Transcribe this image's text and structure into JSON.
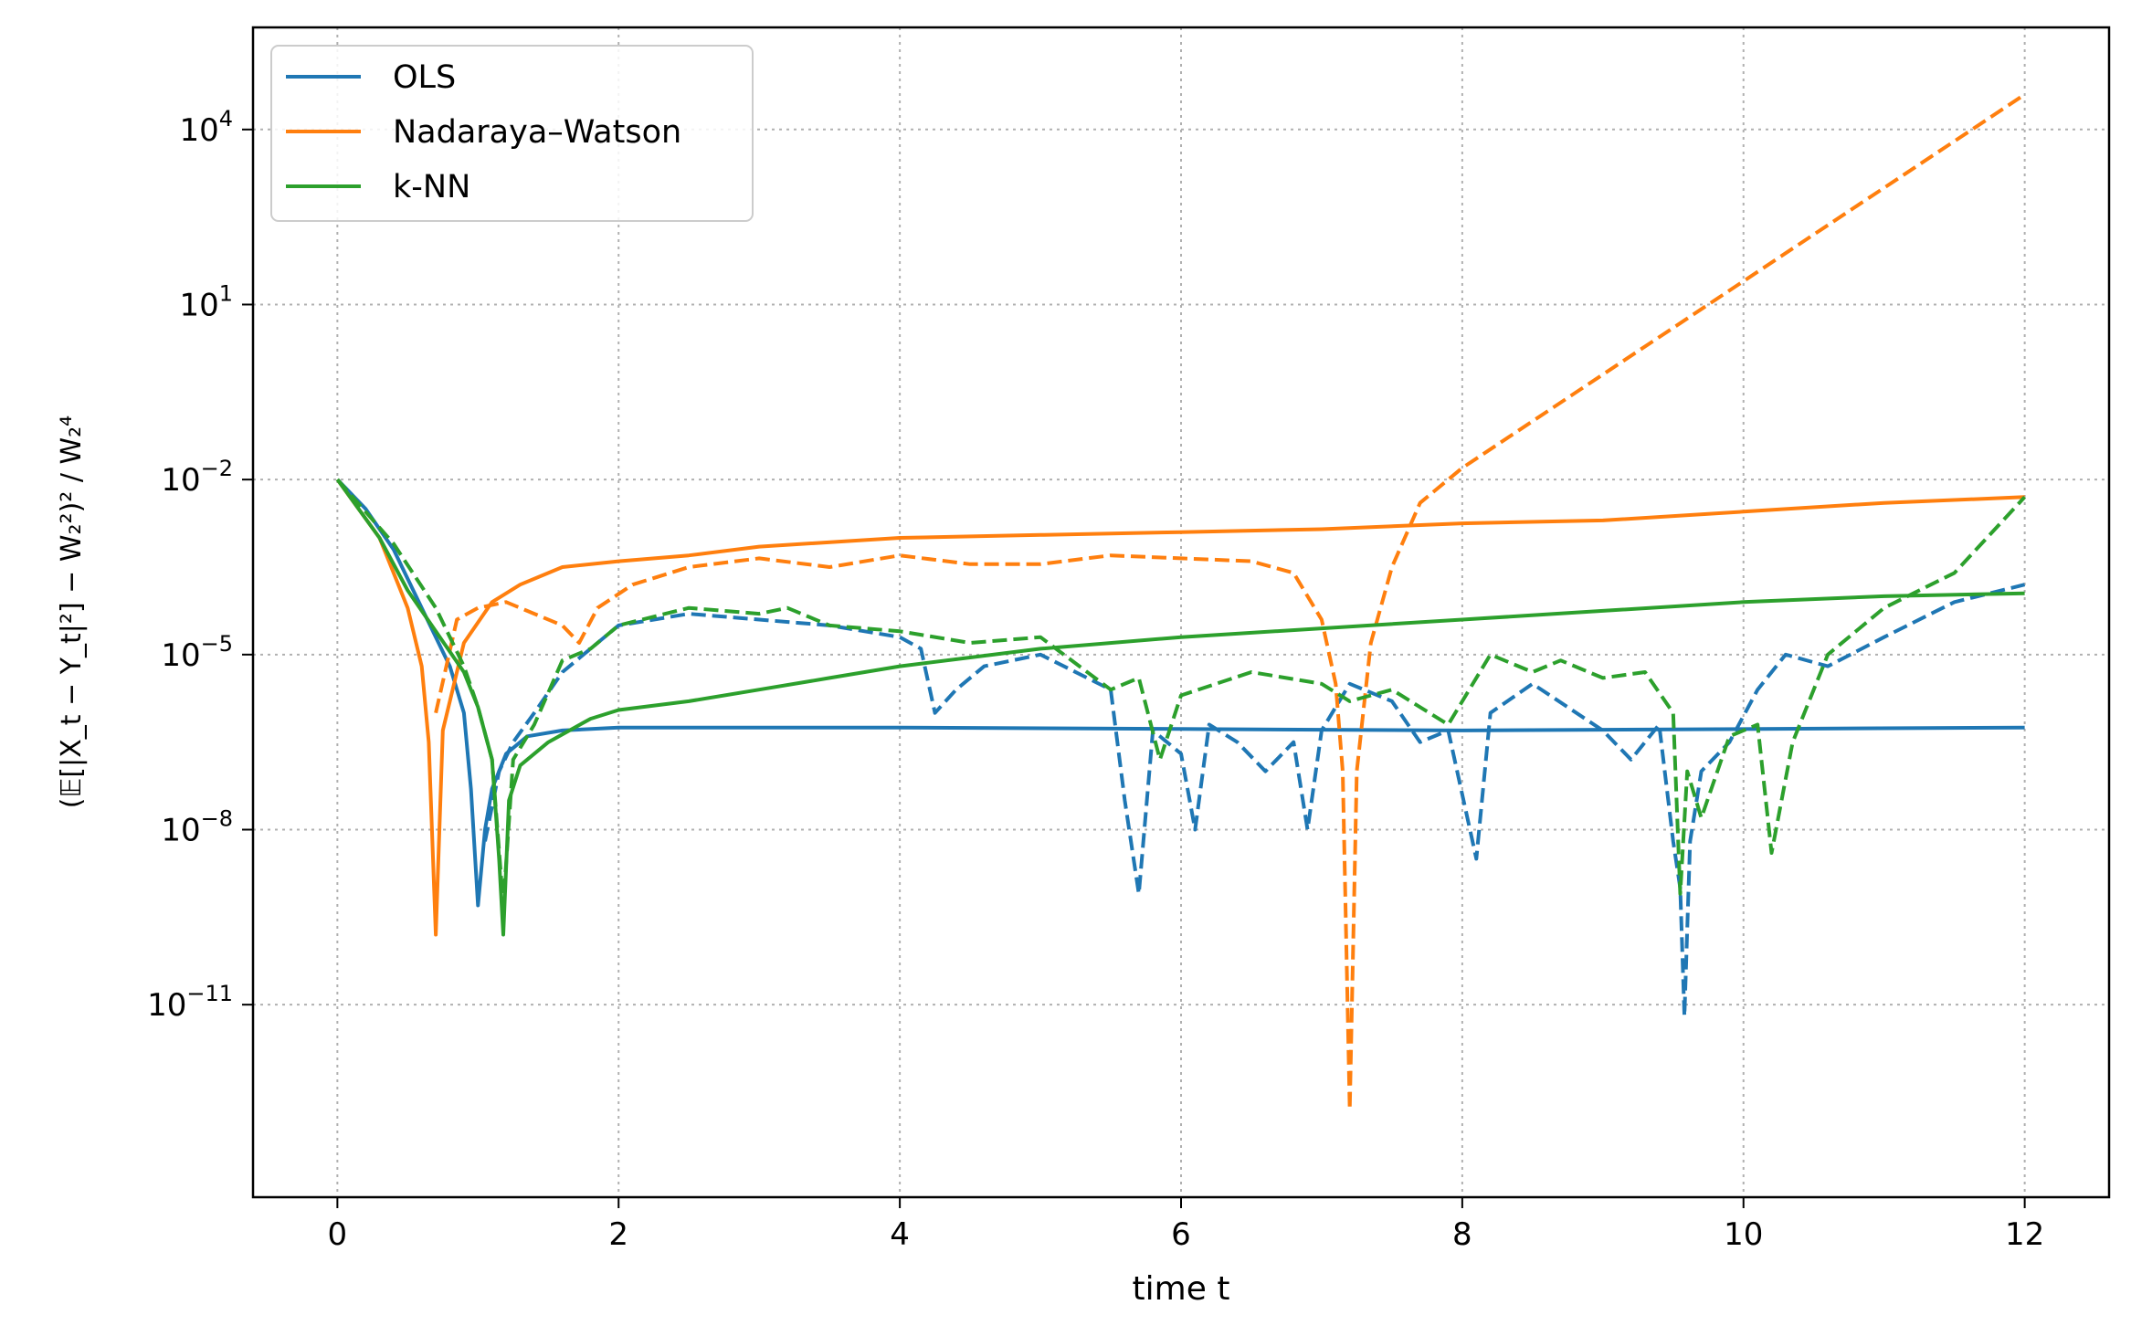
{
  "chart_data": {
    "type": "line",
    "title": "",
    "xlabel": "time t",
    "ylabel": "(𝔼[|X_t − Y_t|²] − W₂²)² / W₂⁴",
    "yscale": "log",
    "xlim": [
      -0.6,
      12.6
    ],
    "ylim_exp": [
      -14.3,
      5.75
    ],
    "xticks": [
      0,
      2,
      4,
      6,
      8,
      10,
      12
    ],
    "xtick_labels": [
      "0",
      "2",
      "4",
      "6",
      "8",
      "10",
      "12"
    ],
    "yticks_exp": [
      -11,
      -8,
      -5,
      -2,
      1,
      4
    ],
    "ytick_labels": [
      {
        "base": "10",
        "exp": "−11"
      },
      {
        "base": "10",
        "exp": "−8"
      },
      {
        "base": "10",
        "exp": "−5"
      },
      {
        "base": "10",
        "exp": "−2"
      },
      {
        "base": "10",
        "exp": "1"
      },
      {
        "base": "10",
        "exp": "4"
      }
    ],
    "grid": true,
    "legend_position": "top-left",
    "legend": [
      {
        "name": "OLS",
        "color": "#1f77b4"
      },
      {
        "name": "Nadaraya–Watson",
        "color": "#ff7f0e"
      },
      {
        "name": "k-NN",
        "color": "#2ca02c"
      }
    ],
    "series": [
      {
        "name": "OLS (solid)",
        "color": "#1f77b4",
        "style": "solid",
        "log10_values": [
          [
            0,
            -2
          ],
          [
            0.2,
            -2.5
          ],
          [
            0.4,
            -3.2
          ],
          [
            0.6,
            -4.2
          ],
          [
            0.8,
            -5.2
          ],
          [
            0.9,
            -6
          ],
          [
            0.95,
            -7.3
          ],
          [
            1.0,
            -9.3
          ],
          [
            1.05,
            -8
          ],
          [
            1.1,
            -7.3
          ],
          [
            1.2,
            -6.7
          ],
          [
            1.35,
            -6.4
          ],
          [
            1.6,
            -6.3
          ],
          [
            2,
            -6.25
          ],
          [
            4,
            -6.25
          ],
          [
            8,
            -6.3
          ],
          [
            12,
            -6.25
          ]
        ]
      },
      {
        "name": "OLS (dashed)",
        "color": "#1f77b4",
        "style": "dashed",
        "log10_values": [
          [
            1.05,
            -8.2
          ],
          [
            1.15,
            -7
          ],
          [
            1.25,
            -6.5
          ],
          [
            1.4,
            -6
          ],
          [
            1.6,
            -5.3
          ],
          [
            1.8,
            -4.9
          ],
          [
            2,
            -4.5
          ],
          [
            2.5,
            -4.3
          ],
          [
            3,
            -4.4
          ],
          [
            3.5,
            -4.5
          ],
          [
            4,
            -4.7
          ],
          [
            4.15,
            -4.9
          ],
          [
            4.25,
            -6
          ],
          [
            4.4,
            -5.6
          ],
          [
            4.6,
            -5.2
          ],
          [
            5,
            -5
          ],
          [
            5.5,
            -5.6
          ],
          [
            5.6,
            -7.5
          ],
          [
            5.7,
            -9.1
          ],
          [
            5.8,
            -6.3
          ],
          [
            6.0,
            -6.7
          ],
          [
            6.1,
            -8
          ],
          [
            6.2,
            -6.2
          ],
          [
            6.4,
            -6.5
          ],
          [
            6.6,
            -7
          ],
          [
            6.8,
            -6.5
          ],
          [
            6.9,
            -8
          ],
          [
            7.0,
            -6.3
          ],
          [
            7.2,
            -5.5
          ],
          [
            7.5,
            -5.8
          ],
          [
            7.7,
            -6.5
          ],
          [
            7.9,
            -6.3
          ],
          [
            8.1,
            -8.5
          ],
          [
            8.2,
            -6
          ],
          [
            8.5,
            -5.5
          ],
          [
            9,
            -6.3
          ],
          [
            9.2,
            -6.8
          ],
          [
            9.4,
            -6.2
          ],
          [
            9.5,
            -8.2
          ],
          [
            9.55,
            -9
          ],
          [
            9.58,
            -11.2
          ],
          [
            9.62,
            -8.2
          ],
          [
            9.7,
            -7
          ],
          [
            9.9,
            -6.5
          ],
          [
            10.1,
            -5.6
          ],
          [
            10.3,
            -5
          ],
          [
            10.6,
            -5.2
          ],
          [
            11,
            -4.7
          ],
          [
            11.5,
            -4.1
          ],
          [
            12,
            -3.8
          ]
        ]
      },
      {
        "name": "Nadaraya–Watson (solid)",
        "color": "#ff7f0e",
        "style": "solid",
        "log10_values": [
          [
            0,
            -2
          ],
          [
            0.3,
            -3
          ],
          [
            0.5,
            -4.2
          ],
          [
            0.6,
            -5.2
          ],
          [
            0.65,
            -6.5
          ],
          [
            0.7,
            -9.8
          ],
          [
            0.75,
            -6.3
          ],
          [
            0.9,
            -4.8
          ],
          [
            1.1,
            -4.1
          ],
          [
            1.3,
            -3.8
          ],
          [
            1.6,
            -3.5
          ],
          [
            2,
            -3.4
          ],
          [
            2.5,
            -3.3
          ],
          [
            3,
            -3.15
          ],
          [
            4,
            -3
          ],
          [
            5,
            -2.95
          ],
          [
            6,
            -2.9
          ],
          [
            7,
            -2.85
          ],
          [
            8,
            -2.75
          ],
          [
            9,
            -2.7
          ],
          [
            10,
            -2.55
          ],
          [
            11,
            -2.4
          ],
          [
            12,
            -2.3
          ]
        ]
      },
      {
        "name": "Nadaraya–Watson (dashed)",
        "color": "#ff7f0e",
        "style": "dashed",
        "log10_values": [
          [
            0.7,
            -6
          ],
          [
            0.85,
            -4.4
          ],
          [
            1.0,
            -4.2
          ],
          [
            1.2,
            -4.1
          ],
          [
            1.4,
            -4.3
          ],
          [
            1.6,
            -4.5
          ],
          [
            1.72,
            -4.8
          ],
          [
            1.85,
            -4.2
          ],
          [
            2.1,
            -3.8
          ],
          [
            2.5,
            -3.5
          ],
          [
            3,
            -3.35
          ],
          [
            3.5,
            -3.5
          ],
          [
            4,
            -3.3
          ],
          [
            4.5,
            -3.45
          ],
          [
            5,
            -3.45
          ],
          [
            5.5,
            -3.3
          ],
          [
            6,
            -3.35
          ],
          [
            6.5,
            -3.4
          ],
          [
            6.8,
            -3.6
          ],
          [
            7.0,
            -4.4
          ],
          [
            7.1,
            -5.5
          ],
          [
            7.15,
            -7
          ],
          [
            7.2,
            -12.8
          ],
          [
            7.25,
            -7
          ],
          [
            7.35,
            -4.8
          ],
          [
            7.5,
            -3.5
          ],
          [
            7.7,
            -2.4
          ],
          [
            8,
            -1.8
          ],
          [
            8.5,
            -1
          ],
          [
            9,
            -0.2
          ],
          [
            9.5,
            0.6
          ],
          [
            10,
            1.4
          ],
          [
            10.5,
            2.2
          ],
          [
            11,
            3.0
          ],
          [
            11.5,
            3.8
          ],
          [
            12,
            4.6
          ]
        ]
      },
      {
        "name": "k-NN (solid)",
        "color": "#2ca02c",
        "style": "solid",
        "log10_values": [
          [
            0,
            -2
          ],
          [
            0.3,
            -3
          ],
          [
            0.5,
            -3.9
          ],
          [
            0.7,
            -4.6
          ],
          [
            0.9,
            -5.3
          ],
          [
            1.0,
            -5.9
          ],
          [
            1.1,
            -6.8
          ],
          [
            1.15,
            -8.5
          ],
          [
            1.18,
            -9.8
          ],
          [
            1.22,
            -7.5
          ],
          [
            1.3,
            -6.9
          ],
          [
            1.5,
            -6.5
          ],
          [
            1.8,
            -6.1
          ],
          [
            2,
            -5.95
          ],
          [
            2.5,
            -5.8
          ],
          [
            3,
            -5.6
          ],
          [
            3.5,
            -5.4
          ],
          [
            4,
            -5.2
          ],
          [
            4.5,
            -5.05
          ],
          [
            5,
            -4.9
          ],
          [
            6,
            -4.7
          ],
          [
            7,
            -4.55
          ],
          [
            8,
            -4.4
          ],
          [
            9,
            -4.25
          ],
          [
            10,
            -4.1
          ],
          [
            11,
            -4.0
          ],
          [
            12,
            -3.95
          ]
        ]
      },
      {
        "name": "k-NN (dashed)",
        "color": "#2ca02c",
        "style": "dashed",
        "log10_values": [
          [
            0,
            -2
          ],
          [
            0.4,
            -3.1
          ],
          [
            0.7,
            -4.2
          ],
          [
            0.9,
            -5.2
          ],
          [
            1.0,
            -5.9
          ],
          [
            1.1,
            -6.8
          ],
          [
            1.18,
            -9.3
          ],
          [
            1.25,
            -6.8
          ],
          [
            1.4,
            -6.2
          ],
          [
            1.6,
            -5.1
          ],
          [
            1.8,
            -4.9
          ],
          [
            2,
            -4.5
          ],
          [
            2.5,
            -4.2
          ],
          [
            3,
            -4.3
          ],
          [
            3.2,
            -4.2
          ],
          [
            3.5,
            -4.5
          ],
          [
            4,
            -4.6
          ],
          [
            4.5,
            -4.8
          ],
          [
            5,
            -4.7
          ],
          [
            5.5,
            -5.6
          ],
          [
            5.7,
            -5.4
          ],
          [
            5.85,
            -6.8
          ],
          [
            6,
            -5.7
          ],
          [
            6.5,
            -5.3
          ],
          [
            7,
            -5.5
          ],
          [
            7.2,
            -5.8
          ],
          [
            7.5,
            -5.6
          ],
          [
            7.9,
            -6.2
          ],
          [
            8.2,
            -5
          ],
          [
            8.5,
            -5.3
          ],
          [
            8.7,
            -5.1
          ],
          [
            9,
            -5.4
          ],
          [
            9.3,
            -5.3
          ],
          [
            9.5,
            -6
          ],
          [
            9.55,
            -9.1
          ],
          [
            9.6,
            -7
          ],
          [
            9.7,
            -7.8
          ],
          [
            9.9,
            -6.4
          ],
          [
            10.1,
            -6.2
          ],
          [
            10.2,
            -8.4
          ],
          [
            10.35,
            -6.5
          ],
          [
            10.6,
            -5
          ],
          [
            11,
            -4.2
          ],
          [
            11.5,
            -3.6
          ],
          [
            12,
            -2.3
          ]
        ]
      }
    ]
  }
}
